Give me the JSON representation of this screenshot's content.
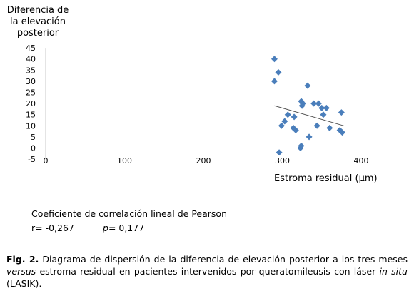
{
  "chart_data": {
    "type": "scatter",
    "ylabel_lines": [
      "Diferencia de",
      "la elevación",
      "posterior"
    ],
    "xlabel": "Estroma residual (µm)",
    "xlim": [
      0,
      400
    ],
    "ylim": [
      -5,
      45
    ],
    "x_ticks": [
      0,
      100,
      200,
      300,
      400
    ],
    "y_ticks": [
      -5,
      0,
      5,
      10,
      15,
      20,
      25,
      30,
      35,
      40,
      45
    ],
    "grid": false,
    "marker": "diamond",
    "color": "#4a7ebb",
    "trendline": {
      "x1": 290,
      "y1": 19,
      "x2": 378,
      "y2": 10
    },
    "points": [
      {
        "x": 290,
        "y": 40
      },
      {
        "x": 290,
        "y": 30
      },
      {
        "x": 295,
        "y": 34
      },
      {
        "x": 296,
        "y": -2
      },
      {
        "x": 299,
        "y": 10
      },
      {
        "x": 303,
        "y": 12
      },
      {
        "x": 307,
        "y": 15
      },
      {
        "x": 314,
        "y": 9
      },
      {
        "x": 315,
        "y": 14
      },
      {
        "x": 317,
        "y": 8
      },
      {
        "x": 323,
        "y": 0
      },
      {
        "x": 324,
        "y": 1
      },
      {
        "x": 324,
        "y": 21
      },
      {
        "x": 325,
        "y": 19
      },
      {
        "x": 326,
        "y": 20
      },
      {
        "x": 332,
        "y": 28
      },
      {
        "x": 334,
        "y": 5
      },
      {
        "x": 340,
        "y": 20
      },
      {
        "x": 344,
        "y": 10
      },
      {
        "x": 346,
        "y": 20
      },
      {
        "x": 350,
        "y": 18
      },
      {
        "x": 352,
        "y": 15
      },
      {
        "x": 356,
        "y": 18
      },
      {
        "x": 360,
        "y": 9
      },
      {
        "x": 373,
        "y": 8
      },
      {
        "x": 375,
        "y": 16
      },
      {
        "x": 376,
        "y": 7
      }
    ]
  },
  "stats": {
    "heading": "Coeficiente de correlación lineal de Pearson",
    "r_text": "r= -0,267",
    "p_label": "p",
    "p_value": "= 0,177"
  },
  "caption": {
    "fig_label": "Fig. 2.",
    "text1": " Diagrama de dispersión de la diferencia de elevación posterior a los tres meses ",
    "italic1": "versus",
    "text2": " estroma residual en pacientes intervenidos por queratomileusis con láser ",
    "italic2": "in situ",
    "text3": " (LASIK)."
  }
}
